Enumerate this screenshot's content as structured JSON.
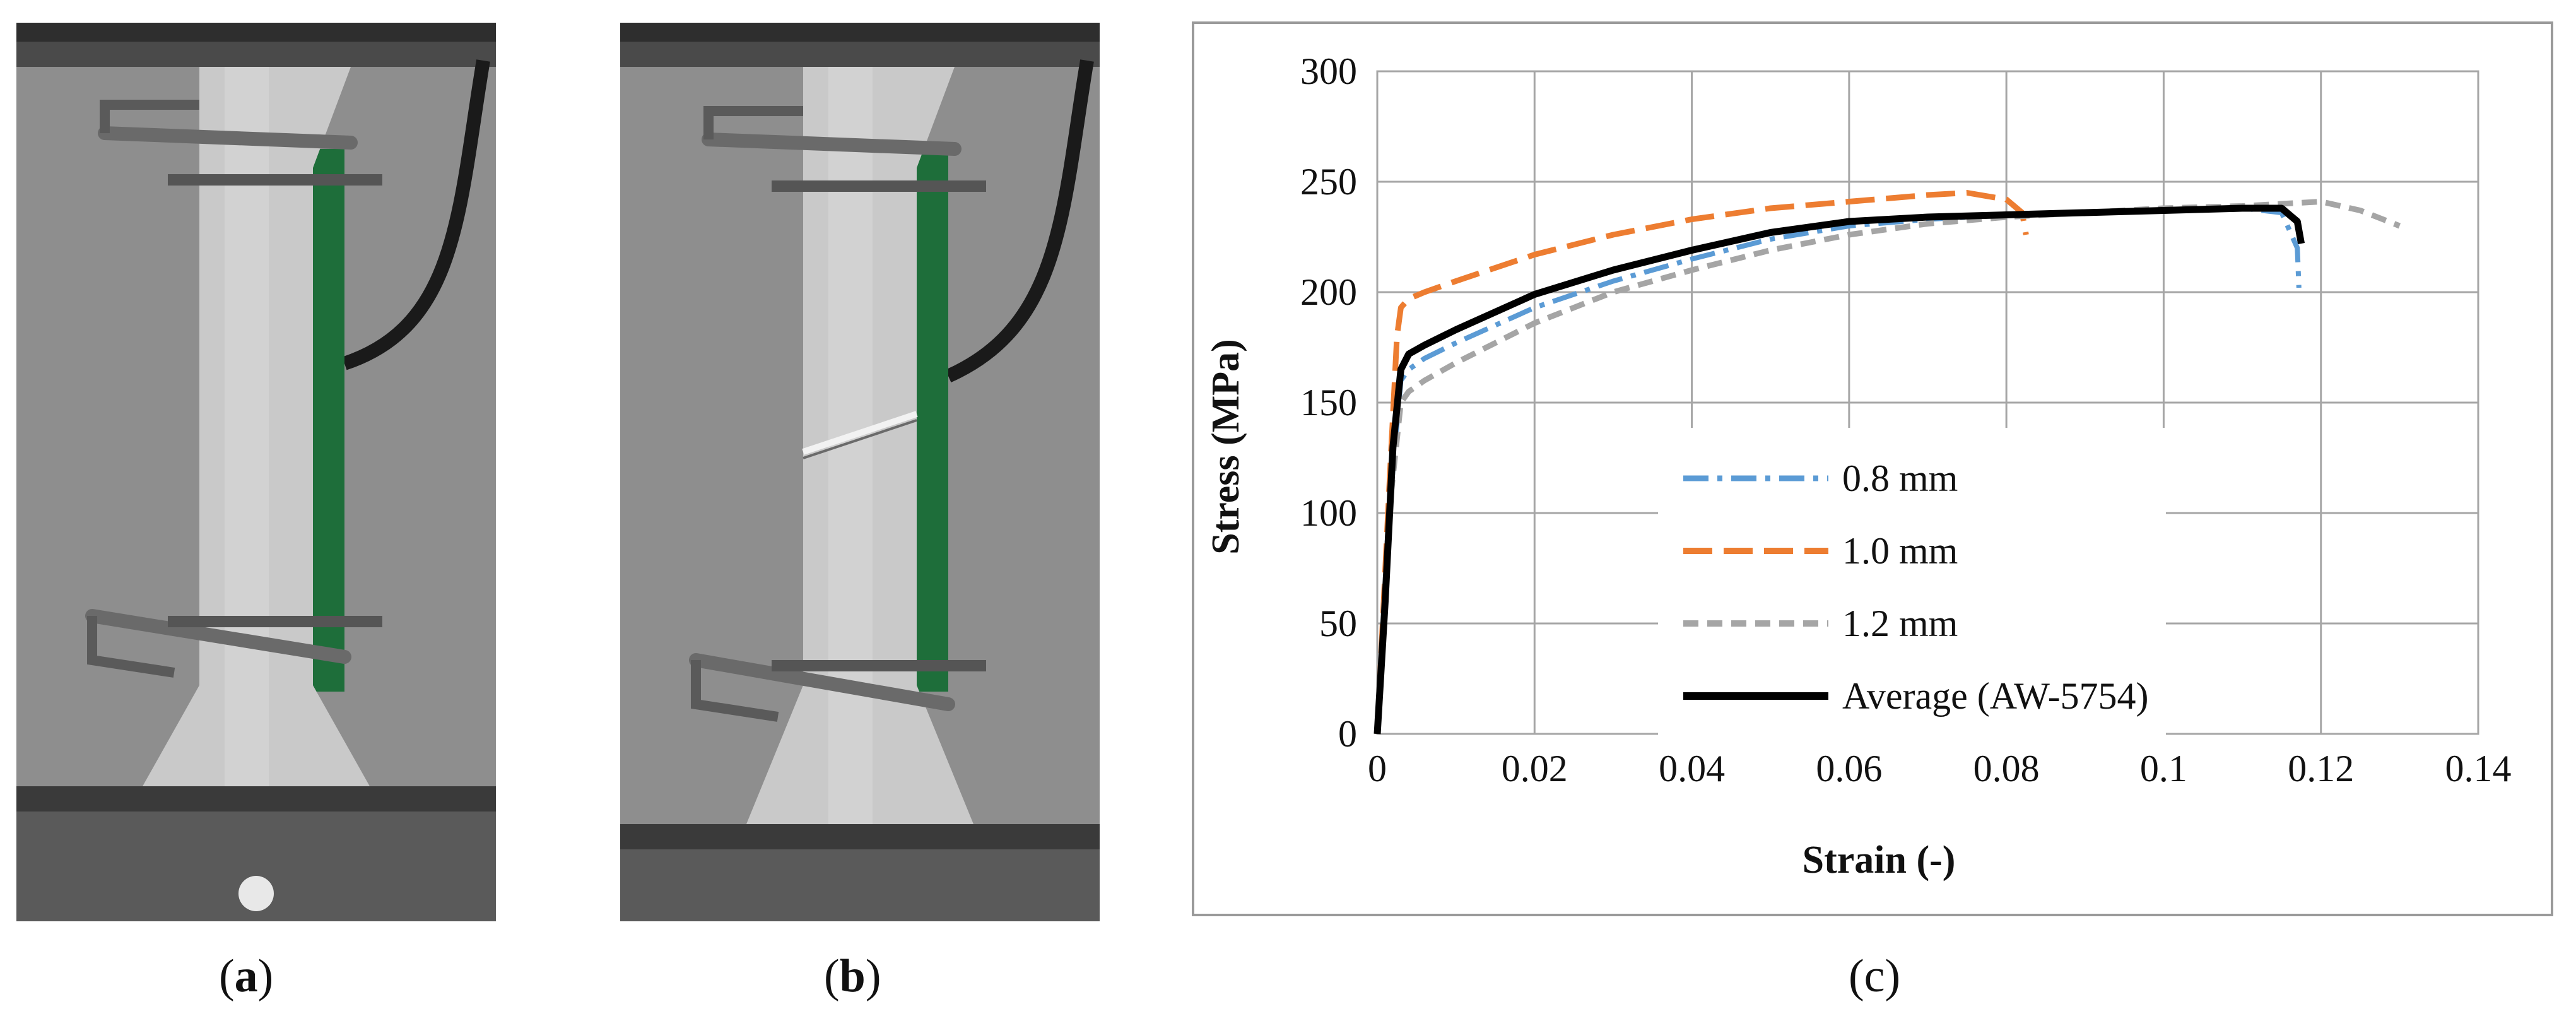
{
  "captions": {
    "a": "a",
    "b": "b",
    "c": "c"
  },
  "photos": {
    "a": {
      "description_icon": "tensile-specimen-intact-photo"
    },
    "b": {
      "description_icon": "tensile-specimen-fractured-photo"
    }
  },
  "chart_data": {
    "type": "line",
    "title": "",
    "xlabel": "Strain (-)",
    "ylabel": "Stress (MPa)",
    "xlim": [
      0,
      0.14
    ],
    "ylim": [
      0,
      300
    ],
    "xticks": [
      0,
      0.02,
      0.04,
      0.06,
      0.08,
      0.1,
      0.12,
      0.14
    ],
    "xtick_labels": [
      "0",
      "0.02",
      "0.04",
      "0.06",
      "0.08",
      "0.1",
      "0.12",
      "0.14"
    ],
    "yticks": [
      0,
      50,
      100,
      150,
      200,
      250,
      300
    ],
    "ytick_labels": [
      "0",
      "50",
      "100",
      "150",
      "200",
      "250",
      "300"
    ],
    "grid": true,
    "legend_position": "inside-center",
    "series": [
      {
        "name": "0.8 mm",
        "color": "#5b9bd5",
        "dash": "dash-dot",
        "x": [
          0,
          0.0015,
          0.003,
          0.004,
          0.006,
          0.01,
          0.02,
          0.03,
          0.04,
          0.05,
          0.06,
          0.07,
          0.08,
          0.09,
          0.1,
          0.11,
          0.115,
          0.117,
          0.1172
        ],
        "y": [
          0,
          100,
          160,
          165,
          170,
          177,
          193,
          205,
          215,
          224,
          230,
          233,
          235,
          236,
          237,
          238,
          236,
          220,
          202
        ]
      },
      {
        "name": "1.0 mm",
        "color": "#ed7d31",
        "dash": "dash",
        "x": [
          0,
          0.0015,
          0.0025,
          0.003,
          0.004,
          0.006,
          0.01,
          0.02,
          0.03,
          0.04,
          0.05,
          0.06,
          0.07,
          0.075,
          0.08,
          0.082,
          0.0825
        ],
        "y": [
          0,
          110,
          180,
          193,
          197,
          200,
          205,
          217,
          226,
          233,
          238,
          241,
          244,
          245,
          242,
          236,
          226
        ]
      },
      {
        "name": "1.2 mm",
        "color": "#a5a5a5",
        "dash": "short-dash",
        "x": [
          0,
          0.0015,
          0.003,
          0.004,
          0.006,
          0.01,
          0.02,
          0.03,
          0.04,
          0.05,
          0.06,
          0.07,
          0.08,
          0.09,
          0.1,
          0.11,
          0.115,
          0.12,
          0.125,
          0.13
        ],
        "y": [
          0,
          100,
          150,
          155,
          160,
          168,
          186,
          200,
          210,
          219,
          226,
          231,
          234,
          236,
          238,
          239,
          240,
          241,
          237,
          230
        ]
      },
      {
        "name": "Average (AW-5754)",
        "color": "#000000",
        "dash": "solid",
        "x": [
          0,
          0.001,
          0.002,
          0.003,
          0.004,
          0.006,
          0.01,
          0.02,
          0.03,
          0.04,
          0.05,
          0.06,
          0.07,
          0.08,
          0.09,
          0.1,
          0.11,
          0.115,
          0.117,
          0.1175
        ],
        "y": [
          0,
          60,
          130,
          165,
          172,
          176,
          183,
          199,
          210,
          219,
          227,
          232,
          234,
          235,
          236,
          237,
          238,
          238,
          232,
          222
        ]
      }
    ]
  }
}
